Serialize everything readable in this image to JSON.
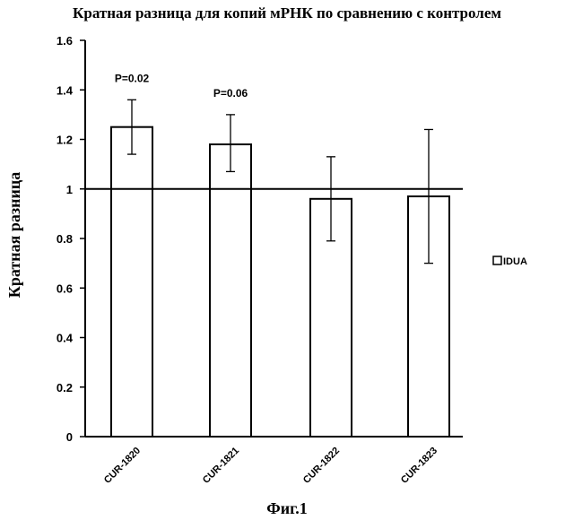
{
  "chart_data": {
    "type": "bar",
    "title": "Кратная разница для копий мРНК по сравнению с контролем",
    "xlabel": "",
    "ylabel": "Кратная разница",
    "categories": [
      "CUR-1820",
      "CUR-1821",
      "CUR-1822",
      "CUR-1823"
    ],
    "series": [
      {
        "name": "IDUA",
        "values": [
          1.25,
          1.18,
          0.96,
          0.97
        ],
        "error_low": [
          1.14,
          1.07,
          0.79,
          0.7
        ],
        "error_high": [
          1.36,
          1.3,
          1.13,
          1.24
        ]
      }
    ],
    "ylim": [
      0,
      1.6
    ],
    "yticks": [
      "0",
      "0.2",
      "0.4",
      "0.6",
      "0.8",
      "1",
      "1.2",
      "1.4",
      "1.6"
    ],
    "reference_line": 1.0,
    "annotations": [
      {
        "category": "CUR-1820",
        "text": "P=0.02"
      },
      {
        "category": "CUR-1821",
        "text": "P=0.06"
      }
    ],
    "grid": false,
    "legend_position": "right"
  },
  "caption": "Фиг.1"
}
